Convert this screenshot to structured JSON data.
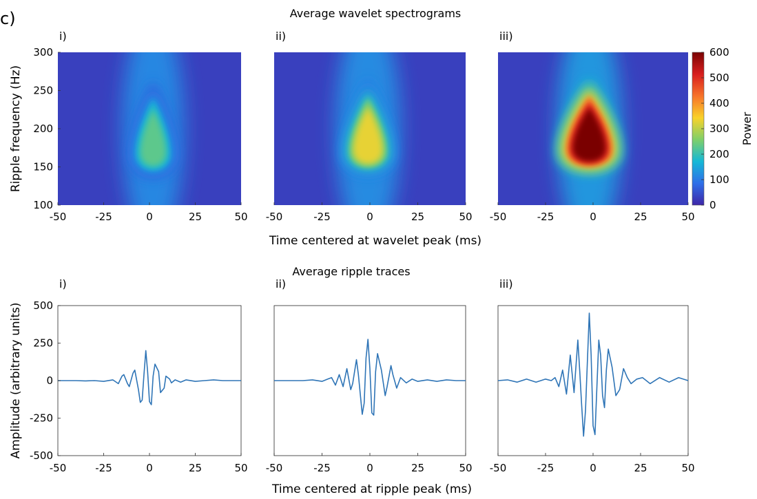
{
  "panel_label": "c)",
  "chart_data": [
    {
      "type": "heatmap",
      "title": "Average wavelet spectrograms",
      "xlabel": "Time centered at wavelet peak (ms)",
      "ylabel": "Ripple frequency (Hz)",
      "xlim": [
        -50,
        50
      ],
      "ylim": [
        100,
        300
      ],
      "xticks": [
        "-50",
        "-25",
        "0",
        "25",
        "50"
      ],
      "yticks": [
        "100",
        "150",
        "200",
        "250",
        "300"
      ],
      "colorbar": {
        "label": "Power",
        "range": [
          0,
          600
        ],
        "ticks": [
          "0",
          "100",
          "200",
          "300",
          "400",
          "500",
          "600"
        ]
      },
      "colormap": [
        "#3e26a8",
        "#2f6fe8",
        "#15b8d6",
        "#7fcf6a",
        "#f9d22a",
        "#f7732a",
        "#d81e1e",
        "#7a0403"
      ],
      "panels": [
        {
          "label": "i)",
          "peak_time_ms": 2,
          "peak_freq_hz": 175,
          "peak_power": 230
        },
        {
          "label": "ii)",
          "peak_time_ms": -1,
          "peak_freq_hz": 178,
          "peak_power": 330
        },
        {
          "label": "iii)",
          "peak_time_ms": -2,
          "peak_freq_hz": 180,
          "peak_power": 600
        }
      ]
    },
    {
      "type": "line",
      "title": "Average ripple traces",
      "xlabel": "Time centered at ripple peak (ms)",
      "ylabel": "Amplitude (arbitrary units)",
      "xlim": [
        -50,
        50
      ],
      "ylim": [
        -500,
        500
      ],
      "xticks": [
        "-50",
        "-25",
        "0",
        "25",
        "50"
      ],
      "yticks": [
        "-500",
        "-250",
        "0",
        "250",
        "500"
      ],
      "line_color": "#2e74b6",
      "panels": [
        {
          "label": "i)",
          "x": [
            -50,
            -45,
            -40,
            -35,
            -30,
            -25,
            -20,
            -17,
            -15,
            -14,
            -12,
            -11,
            -9,
            -8,
            -6,
            -5,
            -4,
            -3,
            -2,
            -1,
            0,
            1,
            2,
            3,
            5,
            6,
            8,
            9,
            11,
            12,
            14,
            17,
            20,
            25,
            30,
            35,
            40,
            45,
            50
          ],
          "y": [
            0,
            0,
            0,
            -2,
            0,
            -5,
            5,
            -20,
            30,
            40,
            -20,
            -40,
            50,
            70,
            -60,
            -145,
            -130,
            40,
            200,
            60,
            -140,
            -160,
            30,
            110,
            60,
            -80,
            -50,
            30,
            10,
            -15,
            5,
            -10,
            5,
            -5,
            0,
            5,
            0,
            0,
            0
          ]
        },
        {
          "label": "ii)",
          "x": [
            -50,
            -45,
            -40,
            -35,
            -30,
            -25,
            -22,
            -20,
            -18,
            -16,
            -14,
            -12,
            -10,
            -9,
            -7,
            -6,
            -4,
            -3,
            -2,
            -1,
            0,
            1,
            2,
            3,
            4,
            6,
            8,
            9,
            11,
            12,
            14,
            16,
            19,
            22,
            25,
            30,
            35,
            40,
            45,
            50
          ],
          "y": [
            0,
            0,
            0,
            0,
            5,
            -5,
            10,
            20,
            -30,
            40,
            -40,
            80,
            -60,
            -20,
            140,
            40,
            -225,
            -150,
            150,
            275,
            80,
            -215,
            -230,
            60,
            180,
            70,
            -100,
            -40,
            100,
            40,
            -50,
            20,
            -15,
            10,
            -5,
            5,
            -5,
            5,
            0,
            0
          ],
          "y_note": ""
        },
        {
          "label": "iii)",
          "x": [
            -50,
            -45,
            -40,
            -35,
            -30,
            -25,
            -22,
            -20,
            -18,
            -16,
            -14,
            -12,
            -10,
            -8,
            -7,
            -6,
            -5,
            -4,
            -3,
            -2,
            -1,
            0,
            1,
            2,
            3,
            4,
            5,
            6,
            7,
            8,
            10,
            12,
            14,
            16,
            18,
            20,
            23,
            26,
            30,
            35,
            40,
            45,
            50
          ],
          "y": [
            0,
            5,
            -10,
            10,
            -10,
            10,
            0,
            20,
            -40,
            70,
            -90,
            170,
            -80,
            270,
            60,
            -160,
            -370,
            -200,
            120,
            450,
            170,
            -300,
            -360,
            -50,
            270,
            170,
            -100,
            -180,
            70,
            210,
            90,
            -100,
            -60,
            80,
            20,
            -20,
            10,
            20,
            -20,
            20,
            -10,
            20,
            0
          ]
        }
      ]
    }
  ]
}
